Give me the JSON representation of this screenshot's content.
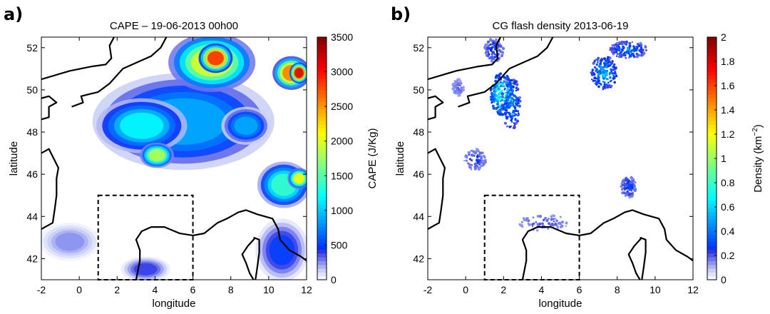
{
  "figure": {
    "panels": [
      {
        "panel_label": "a)",
        "title": "CAPE  –  19-06-2013  00h00",
        "xlabel": "longitude",
        "ylabel": "latitude",
        "colorbar_label": "CAPE (J/Kg)"
      },
      {
        "panel_label": "b)",
        "title": "CG flash density 2013-06-19",
        "xlabel": "longitude",
        "ylabel": "latitude",
        "colorbar_label_main": "Density (km",
        "colorbar_label_sup": "−2",
        "colorbar_label_end": ")"
      }
    ]
  },
  "chart_data": [
    {
      "type": "heatmap",
      "title": "CAPE  –  19-06-2013  00h00",
      "xlabel": "longitude",
      "ylabel": "latitude",
      "xlim": [
        -2,
        12
      ],
      "ylim": [
        41,
        52.5
      ],
      "xticks": [
        "-2",
        "0",
        "2",
        "4",
        "6",
        "8",
        "10",
        "12"
      ],
      "xtick_values": [
        -2,
        0,
        2,
        4,
        6,
        8,
        10,
        12
      ],
      "yticks": [
        "42",
        "44",
        "46",
        "48",
        "50",
        "52"
      ],
      "ytick_values": [
        42,
        44,
        46,
        48,
        50,
        52
      ],
      "colorbar": {
        "label": "CAPE (J/Kg)",
        "range": [
          0,
          3500
        ],
        "ticks": [
          "0",
          "500",
          "1000",
          "1500",
          "2000",
          "2500",
          "3000",
          "3500"
        ],
        "tick_values": [
          0,
          500,
          1000,
          1500,
          2000,
          2500,
          3000,
          3500
        ],
        "colormap": "jet"
      },
      "dashed_box": {
        "lon": [
          1,
          6
        ],
        "lat": [
          41,
          45
        ]
      },
      "blobs": [
        {
          "lon": 5.5,
          "lat": 48.5,
          "rlon": 4.8,
          "rlat": 2.3,
          "value": 900
        },
        {
          "lon": 3.3,
          "lat": 48.3,
          "rlon": 2.4,
          "rlat": 1.3,
          "value": 1200
        },
        {
          "lon": 4.1,
          "lat": 46.9,
          "rlon": 0.9,
          "rlat": 0.6,
          "value": 1850
        },
        {
          "lon": 7.0,
          "lat": 51.3,
          "rlon": 2.3,
          "rlat": 1.4,
          "value": 2000
        },
        {
          "lon": 7.2,
          "lat": 51.5,
          "rlon": 0.9,
          "rlat": 0.7,
          "value": 2900
        },
        {
          "lon": 11.2,
          "lat": 50.8,
          "rlon": 1.0,
          "rlat": 0.8,
          "value": 2600
        },
        {
          "lon": 11.6,
          "lat": 50.8,
          "rlon": 0.5,
          "rlat": 0.5,
          "value": 3200
        },
        {
          "lon": 8.8,
          "lat": 48.3,
          "rlon": 1.3,
          "rlat": 0.9,
          "value": 900
        },
        {
          "lon": 10.8,
          "lat": 45.5,
          "rlon": 1.4,
          "rlat": 1.1,
          "value": 1400
        },
        {
          "lon": 11.6,
          "lat": 45.8,
          "rlon": 0.6,
          "rlat": 0.5,
          "value": 2100
        },
        {
          "lon": 10.7,
          "lat": 42.4,
          "rlon": 1.4,
          "rlat": 1.5,
          "value": 500
        },
        {
          "lon": 3.5,
          "lat": 41.5,
          "rlon": 1.3,
          "rlat": 0.6,
          "value": 400
        },
        {
          "lon": -0.5,
          "lat": 42.8,
          "rlon": 1.6,
          "rlat": 0.9,
          "value": 250
        }
      ]
    },
    {
      "type": "heatmap",
      "title": "CG flash density 2013-06-19",
      "xlabel": "longitude",
      "ylabel": "latitude",
      "xlim": [
        -2,
        12
      ],
      "ylim": [
        41,
        52.5
      ],
      "xticks": [
        "-2",
        "0",
        "2",
        "4",
        "6",
        "8",
        "10",
        "12"
      ],
      "xtick_values": [
        -2,
        0,
        2,
        4,
        6,
        8,
        10,
        12
      ],
      "yticks": [
        "42",
        "44",
        "46",
        "48",
        "50",
        "52"
      ],
      "ytick_values": [
        42,
        44,
        46,
        48,
        50,
        52
      ],
      "colorbar": {
        "label": "Density (km−2)",
        "range": [
          0,
          2
        ],
        "ticks": [
          "0",
          "0.2",
          "0.4",
          "0.6",
          "0.8",
          "1",
          "1.2",
          "1.4",
          "1.6",
          "1.8",
          "2"
        ],
        "tick_values": [
          0,
          0.2,
          0.4,
          0.6,
          0.8,
          1,
          1.2,
          1.4,
          1.6,
          1.8,
          2
        ],
        "colormap": "jet"
      },
      "dashed_box": {
        "lon": [
          1,
          6
        ],
        "lat": [
          41,
          45
        ]
      },
      "clusters": [
        {
          "lon": 1.9,
          "lat": 49.8,
          "rlon": 0.6,
          "rlat": 1.0,
          "value": 0.65
        },
        {
          "lon": 2.4,
          "lat": 49.4,
          "rlon": 0.5,
          "rlat": 1.3,
          "value": 0.35
        },
        {
          "lon": 7.3,
          "lat": 50.8,
          "rlon": 0.7,
          "rlat": 0.8,
          "value": 0.4
        },
        {
          "lon": 8.6,
          "lat": 51.9,
          "rlon": 1.0,
          "rlat": 0.4,
          "value": 0.3
        },
        {
          "lon": 1.5,
          "lat": 51.9,
          "rlon": 0.5,
          "rlat": 0.6,
          "value": 0.2
        },
        {
          "lon": 0.5,
          "lat": 46.7,
          "rlon": 0.6,
          "rlat": 0.5,
          "value": 0.15
        },
        {
          "lon": 8.6,
          "lat": 45.4,
          "rlon": 0.4,
          "rlat": 0.5,
          "value": 0.2
        },
        {
          "lon": 4.1,
          "lat": 43.7,
          "rlon": 1.3,
          "rlat": 0.4,
          "value": 0.12
        },
        {
          "lon": -0.4,
          "lat": 50.1,
          "rlon": 0.3,
          "rlat": 0.4,
          "value": 0.1
        }
      ]
    }
  ],
  "coastline": {
    "segments": [
      [
        [
          -2,
          50.5
        ],
        [
          -0.5,
          50.9
        ],
        [
          0.6,
          51.1
        ],
        [
          1.4,
          51.2
        ],
        [
          1.7,
          51.5
        ],
        [
          1.6,
          52.1
        ],
        [
          1.9,
          52.6
        ]
      ],
      [
        [
          -2,
          49.6
        ],
        [
          -1.6,
          49.7
        ],
        [
          -1.2,
          49.4
        ],
        [
          -1.6,
          49.2
        ],
        [
          -1.6,
          48.7
        ],
        [
          -2,
          48.6
        ]
      ],
      [
        [
          -0.4,
          49.2
        ],
        [
          0.2,
          49.4
        ],
        [
          0.1,
          49.7
        ],
        [
          1.0,
          49.9
        ],
        [
          1.6,
          50.3
        ],
        [
          2.3,
          51.0
        ],
        [
          2.8,
          51.2
        ],
        [
          3.3,
          51.4
        ],
        [
          3.8,
          51.6
        ],
        [
          4.3,
          52.0
        ],
        [
          4.6,
          52.5
        ]
      ],
      [
        [
          -2,
          47.0
        ],
        [
          -1.6,
          47.2
        ],
        [
          -1.1,
          46.3
        ],
        [
          -1.2,
          45.8
        ],
        [
          -1.2,
          45.0
        ],
        [
          -1.3,
          44.3
        ],
        [
          -1.4,
          43.7
        ],
        [
          -2,
          43.4
        ]
      ],
      [
        [
          3.0,
          41.0
        ],
        [
          3.2,
          41.9
        ],
        [
          3.2,
          42.4
        ],
        [
          3.0,
          42.9
        ],
        [
          3.3,
          43.3
        ],
        [
          3.8,
          43.5
        ],
        [
          4.5,
          43.5
        ],
        [
          5.3,
          43.2
        ],
        [
          6.0,
          43.1
        ],
        [
          6.6,
          43.2
        ],
        [
          7.3,
          43.7
        ],
        [
          7.8,
          43.9
        ],
        [
          8.4,
          44.2
        ],
        [
          8.8,
          44.3
        ],
        [
          9.4,
          44.1
        ],
        [
          10.2,
          43.9
        ],
        [
          10.5,
          43.4
        ],
        [
          10.6,
          42.9
        ],
        [
          11.1,
          42.4
        ],
        [
          11.7,
          42.1
        ],
        [
          12.0,
          41.9
        ]
      ],
      [
        [
          9.3,
          43.0
        ],
        [
          8.9,
          42.6
        ],
        [
          8.6,
          42.2
        ],
        [
          8.8,
          41.8
        ],
        [
          9.0,
          41.3
        ],
        [
          9.2,
          41.0
        ]
      ],
      [
        [
          9.2,
          43.0
        ],
        [
          9.5,
          42.9
        ],
        [
          9.5,
          42.3
        ],
        [
          9.4,
          41.6
        ],
        [
          9.3,
          41.0
        ]
      ]
    ]
  }
}
